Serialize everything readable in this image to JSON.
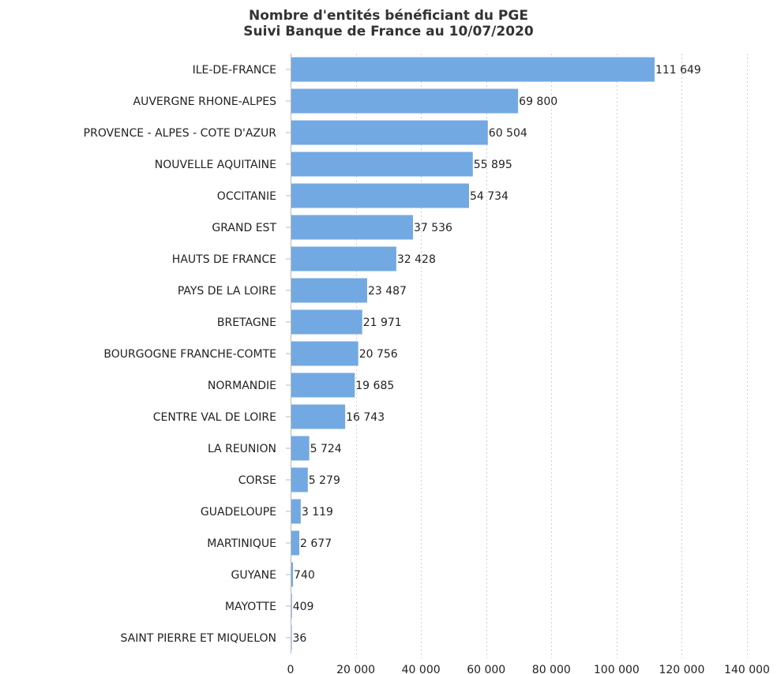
{
  "chart_data": {
    "type": "bar",
    "orientation": "horizontal",
    "title": "Nombre d'entités bénéficiant du PGE",
    "subtitle": "Suivi Banque de France au 10/07/2020",
    "categories": [
      "ILE-DE-FRANCE",
      "AUVERGNE RHONE-ALPES",
      "PROVENCE - ALPES - COTE D'AZUR",
      "NOUVELLE AQUITAINE",
      "OCCITANIE",
      "GRAND EST",
      "HAUTS DE FRANCE",
      "PAYS DE LA LOIRE",
      "BRETAGNE",
      "BOURGOGNE FRANCHE-COMTE",
      "NORMANDIE",
      "CENTRE VAL DE LOIRE",
      "LA REUNION",
      "CORSE",
      "GUADELOUPE",
      "MARTINIQUE",
      "GUYANE",
      "MAYOTTE",
      "SAINT PIERRE ET MIQUELON"
    ],
    "values": [
      111649,
      69800,
      60504,
      55895,
      54734,
      37536,
      32428,
      23487,
      21971,
      20756,
      19685,
      16743,
      5724,
      5279,
      3119,
      2677,
      740,
      409,
      36
    ],
    "value_labels": [
      "111 649",
      "69 800",
      "60 504",
      "55 895",
      "54 734",
      "37 536",
      "32 428",
      "23 487",
      "21 971",
      "20 756",
      "19 685",
      "16 743",
      "5 724",
      "5 279",
      "3 119",
      "2 677",
      "740",
      "409",
      "36"
    ],
    "xlim": [
      0,
      140000
    ],
    "x_ticks": [
      0,
      20000,
      40000,
      60000,
      80000,
      100000,
      120000,
      140000
    ],
    "x_tick_labels": [
      "0",
      "20 000",
      "40 000",
      "60 000",
      "80 000",
      "100 000",
      "120 000",
      "140 000"
    ],
    "grid": "vertical dotted",
    "bar_color": "#73a9e2",
    "grid_color": "#d0d0d0"
  }
}
